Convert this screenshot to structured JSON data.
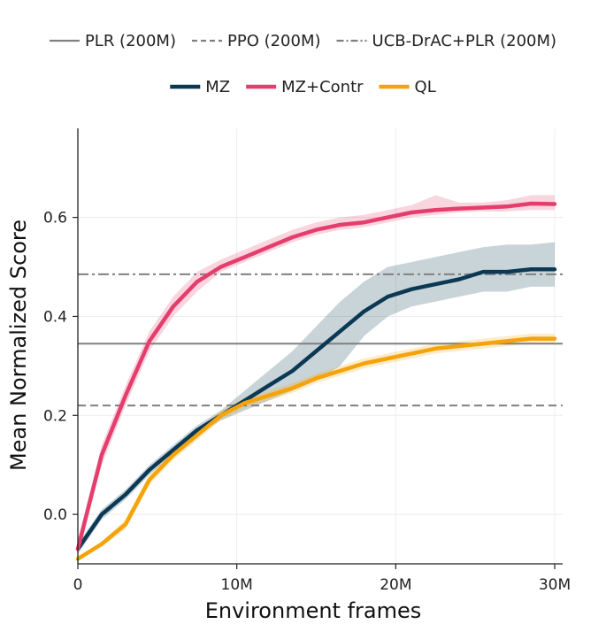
{
  "chart_data": {
    "type": "line",
    "title": "",
    "xlabel": "Environment frames",
    "ylabel": "Mean Normalized Score",
    "xlim": [
      0,
      30.5
    ],
    "ylim": [
      -0.1,
      0.78
    ],
    "x_ticks": [
      0,
      10,
      20,
      30
    ],
    "x_tick_labels": [
      "0",
      "10M",
      "20M",
      "30M"
    ],
    "y_ticks": [
      0.0,
      0.2,
      0.4,
      0.6
    ],
    "y_tick_labels": [
      "0.0",
      "0.2",
      "0.4",
      "0.6"
    ],
    "grid": true,
    "reference_lines": [
      {
        "name": "PLR (200M)",
        "value": 0.345,
        "style": "solid",
        "color": "#808080"
      },
      {
        "name": "PPO (200M)",
        "value": 0.22,
        "style": "dashed",
        "color": "#808080"
      },
      {
        "name": "UCB-DrAC+PLR (200M)",
        "value": 0.485,
        "style": "dashdot",
        "color": "#808080"
      }
    ],
    "series": [
      {
        "name": "MZ",
        "color": "#0b3954",
        "x": [
          0,
          1.5,
          3,
          4.5,
          6,
          7.5,
          9,
          10.5,
          12,
          13.5,
          15,
          16.5,
          18,
          19.5,
          21,
          22.5,
          24,
          25.5,
          27,
          28.5,
          30
        ],
        "values": [
          -0.07,
          0.0,
          0.04,
          0.09,
          0.13,
          0.17,
          0.2,
          0.23,
          0.26,
          0.29,
          0.33,
          0.37,
          0.41,
          0.44,
          0.455,
          0.465,
          0.475,
          0.49,
          0.49,
          0.495,
          0.495
        ],
        "lower": [
          -0.08,
          -0.01,
          0.03,
          0.08,
          0.12,
          0.16,
          0.19,
          0.21,
          0.23,
          0.25,
          0.27,
          0.3,
          0.36,
          0.4,
          0.42,
          0.43,
          0.44,
          0.45,
          0.45,
          0.46,
          0.46
        ],
        "upper": [
          -0.06,
          0.01,
          0.05,
          0.1,
          0.14,
          0.18,
          0.21,
          0.25,
          0.29,
          0.33,
          0.38,
          0.43,
          0.47,
          0.5,
          0.51,
          0.52,
          0.53,
          0.54,
          0.545,
          0.545,
          0.55
        ]
      },
      {
        "name": "MZ+Contr",
        "color": "#e43e6d",
        "x": [
          0,
          1.5,
          3,
          4.5,
          6,
          7.5,
          9,
          10.5,
          12,
          13.5,
          15,
          16.5,
          18,
          19.5,
          21,
          22.5,
          24,
          25.5,
          27,
          28.5,
          30
        ],
        "values": [
          -0.07,
          0.12,
          0.24,
          0.35,
          0.42,
          0.47,
          0.5,
          0.52,
          0.54,
          0.56,
          0.575,
          0.585,
          0.59,
          0.6,
          0.61,
          0.615,
          0.618,
          0.62,
          0.622,
          0.628,
          0.627
        ],
        "lower": [
          -0.08,
          0.1,
          0.22,
          0.33,
          0.4,
          0.45,
          0.49,
          0.51,
          0.53,
          0.55,
          0.565,
          0.575,
          0.58,
          0.59,
          0.6,
          0.605,
          0.61,
          0.612,
          0.612,
          0.615,
          0.615
        ],
        "upper": [
          -0.05,
          0.14,
          0.26,
          0.37,
          0.44,
          0.49,
          0.515,
          0.535,
          0.555,
          0.575,
          0.59,
          0.6,
          0.605,
          0.615,
          0.625,
          0.645,
          0.63,
          0.63,
          0.635,
          0.645,
          0.645
        ]
      },
      {
        "name": "QL",
        "color": "#f5a30a",
        "x": [
          0,
          1.5,
          3,
          4.5,
          6,
          7.5,
          9,
          10.5,
          12,
          13.5,
          15,
          16.5,
          18,
          19.5,
          21,
          22.5,
          24,
          25.5,
          27,
          28.5,
          30
        ],
        "values": [
          -0.09,
          -0.06,
          -0.02,
          0.07,
          0.12,
          0.16,
          0.2,
          0.225,
          0.24,
          0.255,
          0.275,
          0.29,
          0.305,
          0.315,
          0.325,
          0.335,
          0.34,
          0.345,
          0.35,
          0.355,
          0.355
        ],
        "lower": [
          -0.095,
          -0.065,
          -0.03,
          0.06,
          0.11,
          0.15,
          0.19,
          0.215,
          0.23,
          0.245,
          0.265,
          0.28,
          0.295,
          0.305,
          0.315,
          0.325,
          0.33,
          0.335,
          0.34,
          0.345,
          0.345
        ],
        "upper": [
          -0.085,
          -0.055,
          -0.01,
          0.08,
          0.13,
          0.17,
          0.21,
          0.235,
          0.25,
          0.265,
          0.285,
          0.3,
          0.315,
          0.325,
          0.335,
          0.345,
          0.35,
          0.355,
          0.36,
          0.365,
          0.365
        ]
      }
    ],
    "legend": {
      "placement": "top-center",
      "rows": [
        [
          "PLR (200M)",
          "PPO (200M)",
          "UCB-DrAC+PLR (200M)"
        ],
        [
          "MZ",
          "MZ+Contr",
          "QL"
        ]
      ]
    }
  }
}
